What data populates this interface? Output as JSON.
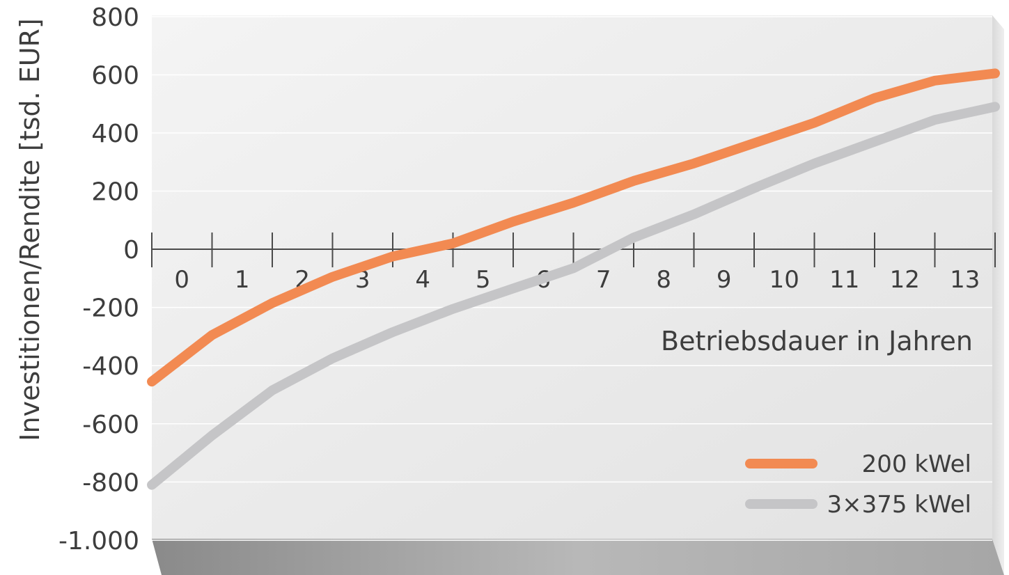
{
  "chart_data": {
    "type": "line",
    "ylabel": "Investitionen/Rendite [tsd. EUR]",
    "xlabel": "Betriebsdauer in Jahren",
    "ylim": [
      -1000,
      800
    ],
    "yticks": [
      800,
      600,
      400,
      200,
      0,
      -200,
      -400,
      -600,
      -800,
      -1000
    ],
    "ytick_labels": [
      "800",
      "600",
      "400",
      "200",
      "0",
      "-200",
      "-400",
      "-600",
      "-800",
      "-1.000"
    ],
    "x_categories": [
      "0",
      "1",
      "2",
      "3",
      "4",
      "5",
      "6",
      "7",
      "8",
      "9",
      "10",
      "11",
      "12",
      "13"
    ],
    "grid": true,
    "legend_position": "bottom-right",
    "series": [
      {
        "name": "200 kWel",
        "color": "#f28a52",
        "x": [
          0,
          1,
          2,
          3,
          4,
          5,
          6,
          7,
          8,
          9,
          10,
          11,
          12,
          13,
          14
        ],
        "values": [
          -455,
          -295,
          -185,
          -95,
          -25,
          20,
          95,
          160,
          235,
          295,
          365,
          435,
          520,
          580,
          605
        ]
      },
      {
        "name": "3×375 kWel",
        "color": "#c5c5c7",
        "x": [
          0,
          1,
          2,
          3,
          4,
          5,
          6,
          7,
          8,
          9,
          10,
          11,
          12,
          13,
          14
        ],
        "values": [
          -810,
          -640,
          -485,
          -375,
          -285,
          -205,
          -135,
          -65,
          40,
          120,
          210,
          295,
          370,
          445,
          490
        ]
      }
    ]
  }
}
